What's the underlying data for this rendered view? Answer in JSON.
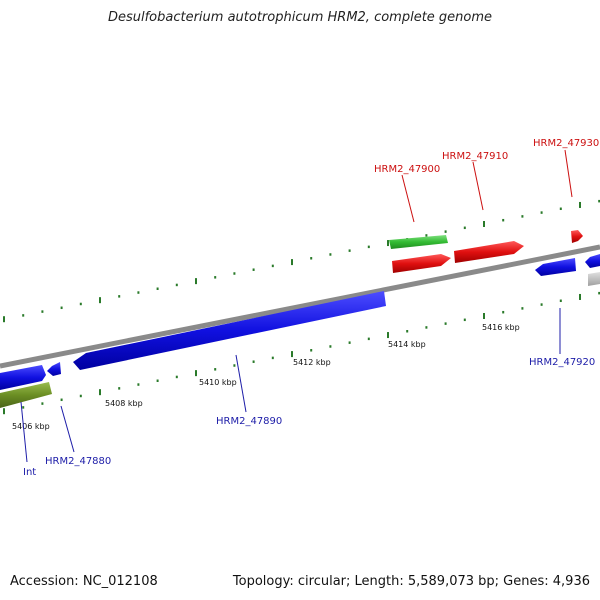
{
  "title": "Desulfobacterium autotrophicum HRM2, complete genome",
  "footer": {
    "accession": "Accession: NC_012108",
    "summary": "Topology: circular; Length: 5,589,073 bp; Genes: 4,936"
  },
  "colors": {
    "backbone": "#8a8a8a",
    "tick": "#2a7a2a",
    "blue_gene": "#1010e0",
    "red_gene": "#e01010",
    "green_gene": "#33bb33",
    "olive_gene": "#6b8e23",
    "gray_gene": "#bbbbbb",
    "label_blue": "#1d1da8",
    "label_red": "#cc1111"
  },
  "scale_labels": [
    "5406 kbp",
    "5408 kbp",
    "5410 kbp",
    "5412 kbp",
    "5414 kbp",
    "5416 kbp"
  ],
  "gene_labels": [
    "Int",
    "HRM2_47880",
    "HRM2_47890",
    "HRM2_47900",
    "HRM2_47910",
    "HRM2_47920",
    "HRM2_47930"
  ]
}
